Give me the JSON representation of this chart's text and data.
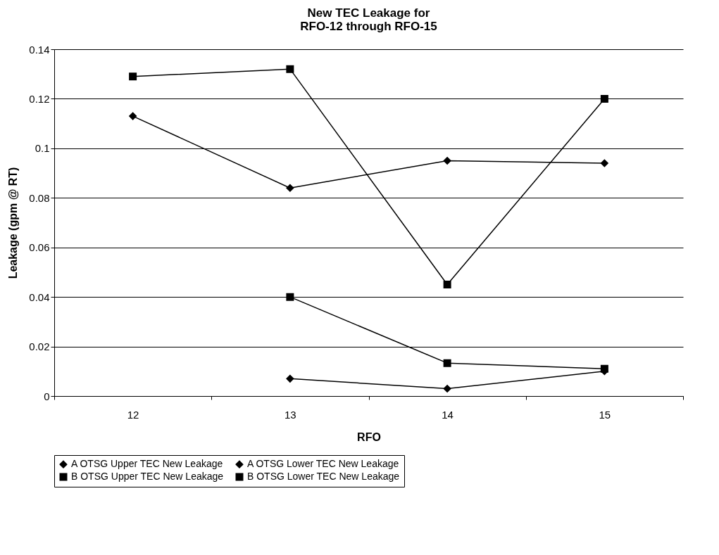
{
  "chart_data": {
    "type": "line",
    "title": "New TEC Leakage for\nRFO-12 through RFO-15",
    "xlabel": "RFO",
    "ylabel": "Leakage (gpm @ RT)",
    "categories": [
      "12",
      "13",
      "14",
      "15"
    ],
    "series": [
      {
        "name": "A OTSG Upper TEC New Leakage",
        "color": "#000000",
        "marker": "diamond",
        "values": [
          0.113,
          0.084,
          0.095,
          0.094
        ]
      },
      {
        "name": "A OTSG Lower TEC New Leakage",
        "color": "#000000",
        "marker": "diamond",
        "values": [
          null,
          0.007,
          0.003,
          0.01
        ]
      },
      {
        "name": "B OTSG Upper TEC New Leakage",
        "color": "#000000",
        "marker": "square",
        "values": [
          0.129,
          0.132,
          0.045,
          0.12
        ]
      },
      {
        "name": "B OTSG Lower TEC New Leakage",
        "color": "#000000",
        "marker": "square",
        "values": [
          null,
          0.04,
          0.0133,
          0.011
        ]
      }
    ],
    "ylim": [
      0,
      0.14
    ],
    "yticks": [
      0,
      0.02,
      0.04,
      0.06,
      0.08,
      0.1,
      0.12,
      0.14
    ],
    "grid": "y",
    "legend": "bottom"
  }
}
